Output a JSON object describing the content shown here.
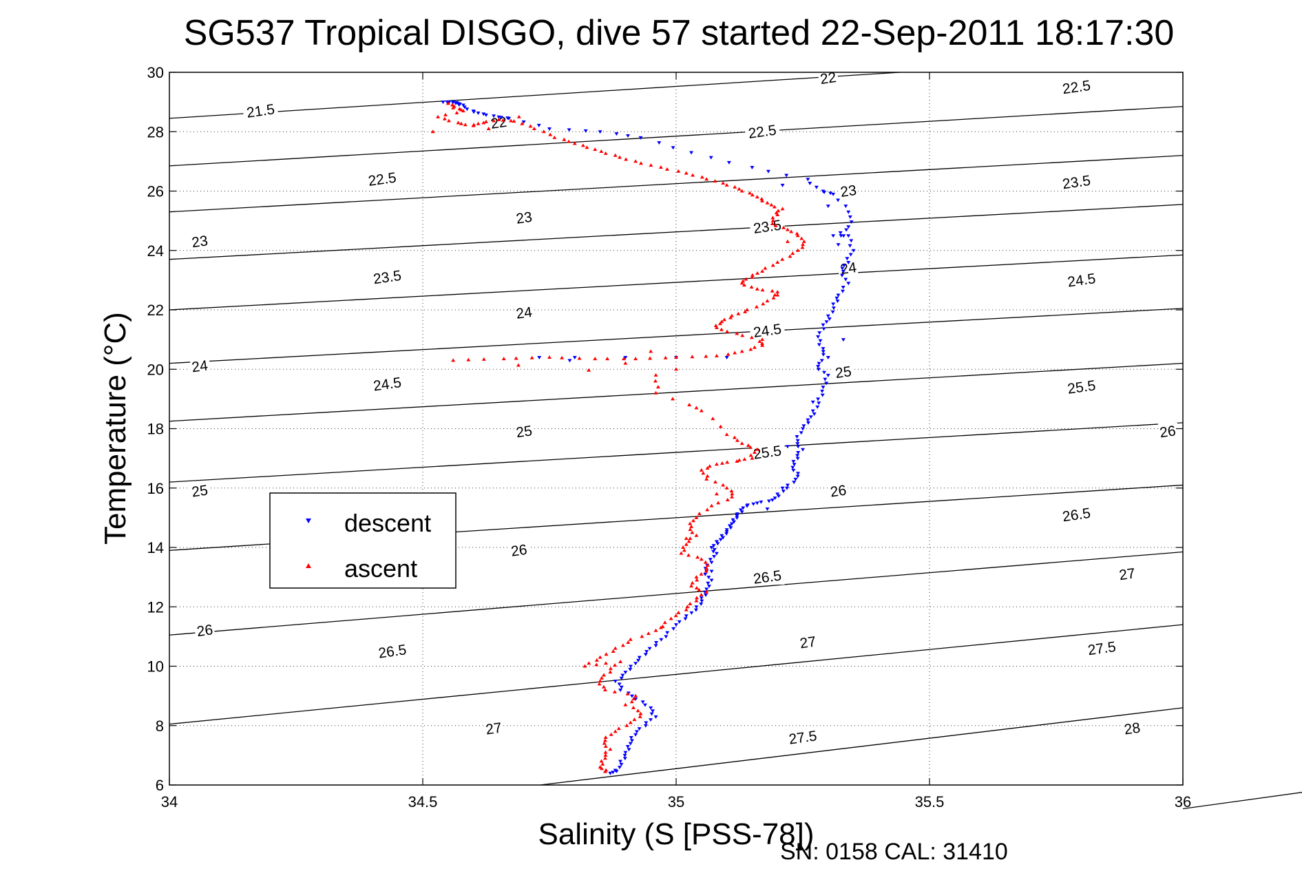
{
  "chart_data": {
    "type": "scatter",
    "title": "SG537 Tropical DISGO, dive 57 started 22-Sep-2011 18:17:30",
    "xlabel": "Salinity (S [PSS-78])",
    "ylabel": "Temperature (°C)",
    "xlim": [
      34,
      36
    ],
    "ylim": [
      6,
      30
    ],
    "xticks": [
      34,
      34.5,
      35,
      35.5,
      36
    ],
    "xtick_labels": [
      "34",
      "34.5",
      "35",
      "35.5",
      "36"
    ],
    "yticks": [
      6,
      8,
      10,
      12,
      14,
      16,
      18,
      20,
      22,
      24,
      26,
      28,
      30
    ],
    "ytick_labels": [
      "6",
      "8",
      "10",
      "12",
      "14",
      "16",
      "18",
      "20",
      "22",
      "24",
      "26",
      "28",
      "30"
    ],
    "grid": true,
    "legend_position": "middle-left",
    "footer": "SN: 0158  CAL: 31410",
    "contours": [
      {
        "label": "21.5",
        "T_at_34": 28.45,
        "T_at_36": 30.6
      },
      {
        "label": "22",
        "T_at_34": 26.85,
        "T_at_36": 28.85
      },
      {
        "label": "22.5",
        "T_at_34": 25.3,
        "T_at_36": 27.2
      },
      {
        "label": "23",
        "T_at_34": 23.7,
        "T_at_36": 25.55
      },
      {
        "label": "23.5",
        "T_at_34": 22.0,
        "T_at_36": 23.85
      },
      {
        "label": "24",
        "T_at_34": 20.2,
        "T_at_36": 22.05
      },
      {
        "label": "24.5",
        "T_at_34": 18.25,
        "T_at_36": 20.2
      },
      {
        "label": "25",
        "T_at_34": 16.2,
        "T_at_36": 18.2
      },
      {
        "label": "25.5",
        "T_at_34": 13.9,
        "T_at_36": 16.1
      },
      {
        "label": "26",
        "T_at_34": 11.05,
        "T_at_36": 13.85
      },
      {
        "label": "26.5",
        "T_at_34": 8.05,
        "T_at_36": 11.4
      },
      {
        "label": "27",
        "T_at_34": 4.5,
        "T_at_36": 8.6
      },
      {
        "label": "27.5",
        "T_at_34": 0.5,
        "T_at_36": 5.2
      }
    ],
    "contour_labels": [
      {
        "text": "21.5",
        "s": 34.18,
        "t": 28.7
      },
      {
        "text": "22",
        "s": 34.65,
        "t": 28.3
      },
      {
        "text": "22",
        "s": 35.3,
        "t": 29.8
      },
      {
        "text": "22.5",
        "s": 35.79,
        "t": 29.5
      },
      {
        "text": "22.5",
        "s": 35.17,
        "t": 28.0
      },
      {
        "text": "22.5",
        "s": 34.42,
        "t": 26.4
      },
      {
        "text": "23",
        "s": 34.06,
        "t": 24.3
      },
      {
        "text": "23",
        "s": 34.7,
        "t": 25.1
      },
      {
        "text": "23",
        "s": 35.34,
        "t": 26.0
      },
      {
        "text": "23.5",
        "s": 35.79,
        "t": 26.3
      },
      {
        "text": "23.5",
        "s": 35.18,
        "t": 24.8
      },
      {
        "text": "23.5",
        "s": 34.43,
        "t": 23.1
      },
      {
        "text": "24",
        "s": 34.06,
        "t": 20.1
      },
      {
        "text": "24",
        "s": 34.7,
        "t": 21.9
      },
      {
        "text": "24",
        "s": 35.34,
        "t": 23.4
      },
      {
        "text": "24.5",
        "s": 35.8,
        "t": 23.0
      },
      {
        "text": "24.5",
        "s": 35.18,
        "t": 21.3
      },
      {
        "text": "24.5",
        "s": 34.43,
        "t": 19.5
      },
      {
        "text": "25",
        "s": 34.06,
        "t": 15.9
      },
      {
        "text": "25",
        "s": 34.7,
        "t": 17.9
      },
      {
        "text": "25",
        "s": 35.33,
        "t": 19.9
      },
      {
        "text": "25.5",
        "s": 35.8,
        "t": 19.4
      },
      {
        "text": "25.5",
        "s": 35.18,
        "t": 17.2
      },
      {
        "text": "26",
        "s": 35.97,
        "t": 17.9
      },
      {
        "text": "26",
        "s": 35.32,
        "t": 15.9
      },
      {
        "text": "26",
        "s": 34.69,
        "t": 13.9
      },
      {
        "text": "26",
        "s": 34.07,
        "t": 11.2
      },
      {
        "text": "26.5",
        "s": 35.79,
        "t": 15.1
      },
      {
        "text": "26.5",
        "s": 35.18,
        "t": 13.0
      },
      {
        "text": "26.5",
        "s": 34.44,
        "t": 10.5
      },
      {
        "text": "27",
        "s": 35.89,
        "t": 13.1
      },
      {
        "text": "27",
        "s": 35.26,
        "t": 10.8
      },
      {
        "text": "27",
        "s": 34.64,
        "t": 7.9
      },
      {
        "text": "27.5",
        "s": 35.84,
        "t": 10.6
      },
      {
        "text": "27.5",
        "s": 35.25,
        "t": 7.6
      },
      {
        "text": "28",
        "s": 35.9,
        "t": 7.9
      }
    ],
    "series": [
      {
        "name": "descent",
        "color": "#0000ff",
        "marker": "triangle-down",
        "points": [
          [
            34.54,
            29.0
          ],
          [
            34.55,
            29.0
          ],
          [
            34.56,
            29.0
          ],
          [
            34.57,
            28.95
          ],
          [
            34.58,
            28.9
          ],
          [
            34.6,
            28.7
          ],
          [
            34.62,
            28.6
          ],
          [
            34.65,
            28.5
          ],
          [
            34.67,
            28.45
          ],
          [
            34.75,
            28.1
          ],
          [
            34.85,
            28.0
          ],
          [
            34.93,
            27.8
          ],
          [
            35.03,
            27.3
          ],
          [
            35.15,
            26.8
          ],
          [
            35.26,
            26.4
          ],
          [
            35.29,
            26.0
          ],
          [
            35.31,
            25.9
          ],
          [
            35.34,
            25.3
          ],
          [
            35.34,
            24.8
          ],
          [
            35.31,
            24.5
          ],
          [
            35.34,
            24.5
          ],
          [
            35.35,
            24.0
          ],
          [
            35.34,
            23.6
          ],
          [
            35.33,
            23.3
          ],
          [
            35.34,
            22.9
          ],
          [
            35.32,
            22.5
          ],
          [
            35.31,
            22.2
          ],
          [
            35.3,
            21.8
          ],
          [
            35.29,
            21.5
          ],
          [
            35.28,
            21.1
          ],
          [
            35.29,
            20.7
          ],
          [
            35.3,
            20.4
          ],
          [
            35.28,
            20.1
          ],
          [
            35.3,
            19.8
          ],
          [
            35.29,
            19.4
          ],
          [
            35.28,
            19.0
          ],
          [
            35.27,
            18.6
          ],
          [
            35.26,
            18.3
          ],
          [
            35.25,
            18.0
          ],
          [
            35.24,
            17.6
          ],
          [
            35.25,
            17.3
          ],
          [
            35.24,
            17.0
          ],
          [
            35.23,
            16.7
          ],
          [
            35.24,
            16.4
          ],
          [
            35.22,
            16.1
          ],
          [
            35.2,
            15.8
          ],
          [
            35.19,
            15.6
          ],
          [
            35.16,
            15.5
          ],
          [
            35.14,
            15.4
          ],
          [
            35.13,
            15.2
          ],
          [
            35.12,
            15.0
          ],
          [
            35.11,
            14.8
          ],
          [
            35.1,
            14.6
          ],
          [
            35.09,
            14.4
          ],
          [
            35.08,
            14.2
          ],
          [
            35.07,
            14.0
          ],
          [
            35.08,
            13.8
          ],
          [
            35.07,
            13.5
          ],
          [
            35.06,
            13.2
          ],
          [
            35.07,
            12.9
          ],
          [
            35.06,
            12.6
          ],
          [
            35.05,
            12.3
          ],
          [
            35.04,
            12.0
          ],
          [
            35.02,
            11.7
          ],
          [
            35.0,
            11.4
          ],
          [
            34.98,
            11.0
          ],
          [
            34.96,
            10.7
          ],
          [
            34.94,
            10.4
          ],
          [
            34.92,
            10.1
          ],
          [
            34.9,
            9.8
          ],
          [
            34.88,
            9.5
          ],
          [
            34.89,
            9.2
          ],
          [
            34.92,
            8.9
          ],
          [
            34.95,
            8.6
          ],
          [
            34.96,
            8.3
          ],
          [
            34.94,
            8.0
          ],
          [
            34.92,
            7.7
          ],
          [
            34.91,
            7.4
          ],
          [
            34.9,
            7.1
          ],
          [
            34.89,
            6.8
          ],
          [
            34.88,
            6.5
          ],
          [
            34.87,
            6.4
          ],
          [
            35.21,
            26.2
          ],
          [
            35.3,
            25.5
          ],
          [
            35.32,
            24.2
          ],
          [
            35.33,
            21.0
          ],
          [
            35.27,
            18.9
          ],
          [
            35.22,
            17.4
          ],
          [
            35.21,
            16.0
          ],
          [
            35.18,
            15.3
          ],
          [
            35.07,
            13.2
          ],
          [
            34.8,
            20.4
          ],
          [
            34.9,
            20.4
          ],
          [
            35.0,
            20.4
          ],
          [
            35.1,
            20.4
          ],
          [
            34.73,
            20.4
          ],
          [
            34.79,
            20.3
          ]
        ]
      },
      {
        "name": "ascent",
        "color": "#ff0000",
        "marker": "triangle-up",
        "points": [
          [
            34.55,
            28.95
          ],
          [
            34.56,
            28.8
          ],
          [
            34.58,
            28.7
          ],
          [
            34.53,
            28.5
          ],
          [
            34.57,
            28.3
          ],
          [
            34.6,
            28.2
          ],
          [
            34.62,
            28.3
          ],
          [
            34.65,
            28.4
          ],
          [
            34.68,
            28.35
          ],
          [
            34.72,
            28.1
          ],
          [
            34.76,
            27.8
          ],
          [
            34.8,
            27.6
          ],
          [
            34.84,
            27.4
          ],
          [
            34.88,
            27.2
          ],
          [
            34.92,
            27.0
          ],
          [
            34.97,
            26.8
          ],
          [
            35.02,
            26.6
          ],
          [
            35.06,
            26.4
          ],
          [
            35.1,
            26.2
          ],
          [
            35.13,
            26.0
          ],
          [
            35.16,
            25.8
          ],
          [
            35.18,
            25.6
          ],
          [
            35.21,
            25.4
          ],
          [
            35.2,
            25.2
          ],
          [
            35.19,
            24.9
          ],
          [
            35.22,
            24.7
          ],
          [
            35.24,
            24.5
          ],
          [
            35.25,
            24.2
          ],
          [
            35.23,
            23.9
          ],
          [
            35.2,
            23.6
          ],
          [
            35.17,
            23.3
          ],
          [
            35.15,
            23.1
          ],
          [
            35.13,
            22.9
          ],
          [
            35.16,
            22.7
          ],
          [
            35.2,
            22.6
          ],
          [
            35.18,
            22.3
          ],
          [
            35.14,
            22.0
          ],
          [
            35.11,
            21.8
          ],
          [
            35.09,
            21.6
          ],
          [
            35.08,
            21.4
          ],
          [
            35.12,
            21.2
          ],
          [
            35.17,
            21.0
          ],
          [
            35.17,
            20.8
          ],
          [
            35.13,
            20.6
          ],
          [
            35.08,
            20.45
          ],
          [
            35.0,
            20.4
          ],
          [
            34.92,
            20.35
          ],
          [
            34.84,
            20.35
          ],
          [
            34.75,
            20.4
          ],
          [
            34.66,
            20.35
          ],
          [
            34.56,
            20.3
          ],
          [
            34.96,
            19.8
          ],
          [
            34.96,
            19.2
          ],
          [
            35.05,
            18.6
          ],
          [
            35.1,
            17.8
          ],
          [
            35.13,
            17.5
          ],
          [
            35.16,
            17.3
          ],
          [
            35.15,
            17.0
          ],
          [
            35.12,
            16.9
          ],
          [
            35.08,
            16.8
          ],
          [
            35.05,
            16.6
          ],
          [
            35.06,
            16.3
          ],
          [
            35.1,
            16.0
          ],
          [
            35.11,
            15.7
          ],
          [
            35.07,
            15.4
          ],
          [
            35.04,
            15.0
          ],
          [
            35.03,
            14.7
          ],
          [
            35.04,
            14.4
          ],
          [
            35.02,
            14.1
          ],
          [
            35.01,
            13.8
          ],
          [
            35.05,
            13.6
          ],
          [
            35.06,
            13.3
          ],
          [
            35.04,
            13.0
          ],
          [
            35.03,
            12.7
          ],
          [
            35.06,
            12.5
          ],
          [
            35.04,
            12.2
          ],
          [
            35.02,
            11.9
          ],
          [
            34.99,
            11.6
          ],
          [
            34.96,
            11.2
          ],
          [
            34.91,
            10.9
          ],
          [
            34.88,
            10.6
          ],
          [
            34.85,
            10.3
          ],
          [
            34.82,
            10.0
          ],
          [
            34.89,
            10.15
          ],
          [
            34.87,
            9.8
          ],
          [
            34.85,
            9.5
          ],
          [
            34.86,
            9.2
          ],
          [
            34.92,
            9.0
          ],
          [
            34.9,
            8.7
          ],
          [
            34.93,
            8.4
          ],
          [
            34.91,
            8.1
          ],
          [
            34.88,
            7.8
          ],
          [
            34.86,
            7.5
          ],
          [
            34.87,
            7.2
          ],
          [
            34.86,
            6.9
          ],
          [
            34.85,
            6.6
          ],
          [
            34.86,
            6.45
          ],
          [
            34.69,
            28.5
          ],
          [
            34.63,
            28.1
          ],
          [
            34.52,
            28.0
          ],
          [
            35.04,
            18.7
          ],
          [
            34.95,
            20.6
          ],
          [
            35.2,
            22.5
          ],
          [
            35.22,
            24.3
          ],
          [
            35.0,
            20.0
          ],
          [
            34.9,
            20.2
          ],
          [
            35.08,
            15.8
          ],
          [
            35.02,
            14.3
          ],
          [
            34.97,
            11.3
          ]
        ]
      }
    ]
  }
}
